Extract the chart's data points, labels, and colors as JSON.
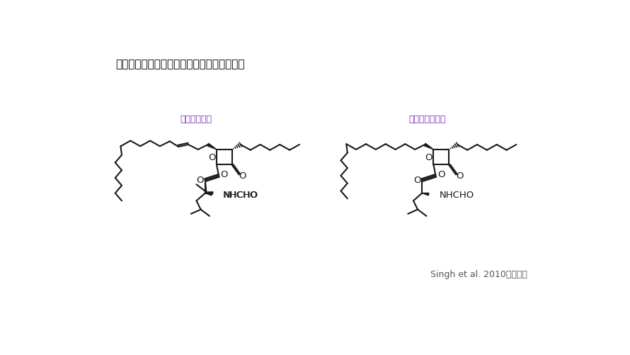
{
  "title": "リプスタチンとオルリスタットの化学構造式",
  "label_lipstatin": "リプスタチン",
  "label_orlistat": "オルリスタット",
  "citation": "Singh et al. 2010より引用",
  "title_color": "#000000",
  "label_color": "#7B2FBE",
  "bg_color": "#FFFFFF",
  "line_color": "#1a1a1a",
  "title_fontsize": 11,
  "label_fontsize": 9,
  "citation_fontsize": 9
}
